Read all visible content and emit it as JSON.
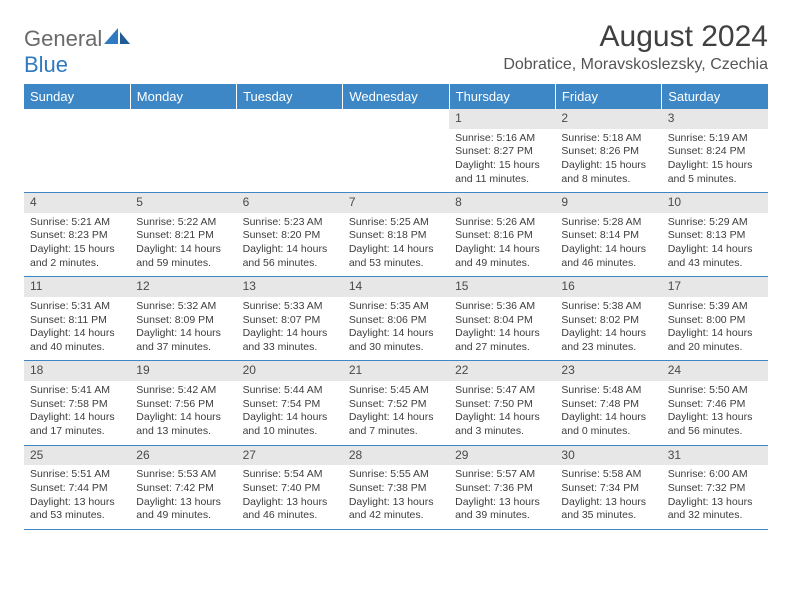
{
  "logo": {
    "text1": "General",
    "text2": "Blue"
  },
  "title": "August 2024",
  "location": "Dobratice, Moravskoslezsky, Czechia",
  "colors": {
    "header_bg": "#3d87c7",
    "header_text": "#ffffff",
    "daynum_bg": "#e7e7e7",
    "cell_border": "#3d87c7",
    "logo_gray": "#6a6a6a",
    "logo_blue": "#2f7ac0",
    "title_color": "#404040",
    "location_color": "#555555",
    "body_text": "#3d3d3d"
  },
  "day_headers": [
    "Sunday",
    "Monday",
    "Tuesday",
    "Wednesday",
    "Thursday",
    "Friday",
    "Saturday"
  ],
  "weeks": [
    [
      null,
      null,
      null,
      null,
      {
        "n": "1",
        "sr": "5:16 AM",
        "ss": "8:27 PM",
        "dl": "15 hours and 11 minutes."
      },
      {
        "n": "2",
        "sr": "5:18 AM",
        "ss": "8:26 PM",
        "dl": "15 hours and 8 minutes."
      },
      {
        "n": "3",
        "sr": "5:19 AM",
        "ss": "8:24 PM",
        "dl": "15 hours and 5 minutes."
      }
    ],
    [
      {
        "n": "4",
        "sr": "5:21 AM",
        "ss": "8:23 PM",
        "dl": "15 hours and 2 minutes."
      },
      {
        "n": "5",
        "sr": "5:22 AM",
        "ss": "8:21 PM",
        "dl": "14 hours and 59 minutes."
      },
      {
        "n": "6",
        "sr": "5:23 AM",
        "ss": "8:20 PM",
        "dl": "14 hours and 56 minutes."
      },
      {
        "n": "7",
        "sr": "5:25 AM",
        "ss": "8:18 PM",
        "dl": "14 hours and 53 minutes."
      },
      {
        "n": "8",
        "sr": "5:26 AM",
        "ss": "8:16 PM",
        "dl": "14 hours and 49 minutes."
      },
      {
        "n": "9",
        "sr": "5:28 AM",
        "ss": "8:14 PM",
        "dl": "14 hours and 46 minutes."
      },
      {
        "n": "10",
        "sr": "5:29 AM",
        "ss": "8:13 PM",
        "dl": "14 hours and 43 minutes."
      }
    ],
    [
      {
        "n": "11",
        "sr": "5:31 AM",
        "ss": "8:11 PM",
        "dl": "14 hours and 40 minutes."
      },
      {
        "n": "12",
        "sr": "5:32 AM",
        "ss": "8:09 PM",
        "dl": "14 hours and 37 minutes."
      },
      {
        "n": "13",
        "sr": "5:33 AM",
        "ss": "8:07 PM",
        "dl": "14 hours and 33 minutes."
      },
      {
        "n": "14",
        "sr": "5:35 AM",
        "ss": "8:06 PM",
        "dl": "14 hours and 30 minutes."
      },
      {
        "n": "15",
        "sr": "5:36 AM",
        "ss": "8:04 PM",
        "dl": "14 hours and 27 minutes."
      },
      {
        "n": "16",
        "sr": "5:38 AM",
        "ss": "8:02 PM",
        "dl": "14 hours and 23 minutes."
      },
      {
        "n": "17",
        "sr": "5:39 AM",
        "ss": "8:00 PM",
        "dl": "14 hours and 20 minutes."
      }
    ],
    [
      {
        "n": "18",
        "sr": "5:41 AM",
        "ss": "7:58 PM",
        "dl": "14 hours and 17 minutes."
      },
      {
        "n": "19",
        "sr": "5:42 AM",
        "ss": "7:56 PM",
        "dl": "14 hours and 13 minutes."
      },
      {
        "n": "20",
        "sr": "5:44 AM",
        "ss": "7:54 PM",
        "dl": "14 hours and 10 minutes."
      },
      {
        "n": "21",
        "sr": "5:45 AM",
        "ss": "7:52 PM",
        "dl": "14 hours and 7 minutes."
      },
      {
        "n": "22",
        "sr": "5:47 AM",
        "ss": "7:50 PM",
        "dl": "14 hours and 3 minutes."
      },
      {
        "n": "23",
        "sr": "5:48 AM",
        "ss": "7:48 PM",
        "dl": "14 hours and 0 minutes."
      },
      {
        "n": "24",
        "sr": "5:50 AM",
        "ss": "7:46 PM",
        "dl": "13 hours and 56 minutes."
      }
    ],
    [
      {
        "n": "25",
        "sr": "5:51 AM",
        "ss": "7:44 PM",
        "dl": "13 hours and 53 minutes."
      },
      {
        "n": "26",
        "sr": "5:53 AM",
        "ss": "7:42 PM",
        "dl": "13 hours and 49 minutes."
      },
      {
        "n": "27",
        "sr": "5:54 AM",
        "ss": "7:40 PM",
        "dl": "13 hours and 46 minutes."
      },
      {
        "n": "28",
        "sr": "5:55 AM",
        "ss": "7:38 PM",
        "dl": "13 hours and 42 minutes."
      },
      {
        "n": "29",
        "sr": "5:57 AM",
        "ss": "7:36 PM",
        "dl": "13 hours and 39 minutes."
      },
      {
        "n": "30",
        "sr": "5:58 AM",
        "ss": "7:34 PM",
        "dl": "13 hours and 35 minutes."
      },
      {
        "n": "31",
        "sr": "6:00 AM",
        "ss": "7:32 PM",
        "dl": "13 hours and 32 minutes."
      }
    ]
  ],
  "labels": {
    "sunrise": "Sunrise:",
    "sunset": "Sunset:",
    "daylight": "Daylight:"
  }
}
